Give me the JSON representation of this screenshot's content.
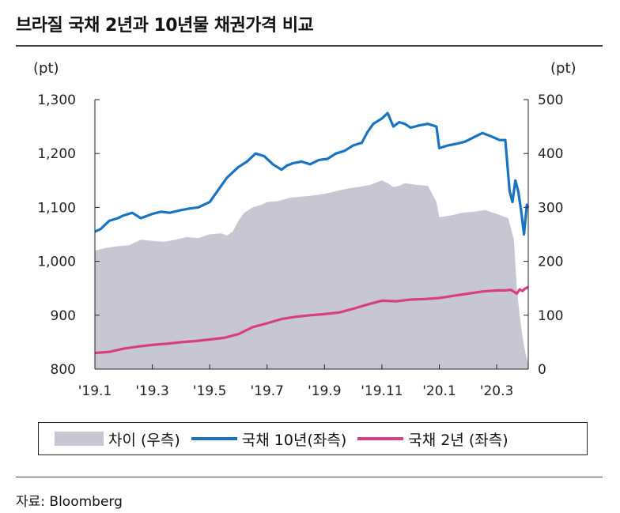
{
  "title": "브라질 국채 2년과 10년물 채권가격 비교",
  "source": "자료: Bloomberg",
  "chart_data": {
    "type": "line",
    "left_unit": "(pt)",
    "right_unit": "(pt)",
    "left_axis": {
      "min": 800,
      "max": 1300,
      "ticks": [
        "800",
        "900",
        "1,000",
        "1,100",
        "1,200",
        "1,300"
      ],
      "tick_values": [
        800,
        900,
        1000,
        1100,
        1200,
        1300
      ]
    },
    "right_axis": {
      "min": 0,
      "max": 500,
      "ticks": [
        "0",
        "100",
        "200",
        "300",
        "400",
        "500"
      ],
      "tick_values": [
        0,
        100,
        200,
        300,
        400,
        500
      ]
    },
    "x_labels": [
      "'19.1",
      "'19.3",
      "'19.5",
      "'19.7",
      "'19.9",
      "'19.11",
      "'20.1",
      "'20.3"
    ],
    "x_label_positions": [
      0,
      2,
      4,
      6,
      8,
      10,
      12,
      14
    ],
    "x_range": [
      0,
      15.1
    ],
    "colors": {
      "spread": "#c6c7d2",
      "bond10": "#1874c3",
      "bond2": "#d83d86"
    },
    "series": [
      {
        "name": "차이 (우측)",
        "axis": "right",
        "style": "area",
        "x": [
          0,
          0.4,
          0.8,
          1.2,
          1.6,
          2.0,
          2.4,
          2.8,
          3.2,
          3.6,
          4.0,
          4.4,
          4.6,
          4.8,
          5.0,
          5.2,
          5.5,
          5.8,
          6.0,
          6.4,
          6.8,
          7.2,
          7.6,
          8.0,
          8.4,
          8.8,
          9.2,
          9.6,
          10.0,
          10.2,
          10.4,
          10.6,
          10.8,
          11.2,
          11.6,
          11.9,
          12.0,
          12.4,
          12.8,
          13.2,
          13.6,
          14.0,
          14.4,
          14.6,
          14.7,
          14.8,
          14.9,
          15.0,
          15.1
        ],
        "values": [
          220,
          225,
          228,
          230,
          240,
          238,
          236,
          240,
          245,
          243,
          250,
          252,
          248,
          255,
          275,
          290,
          300,
          305,
          310,
          312,
          318,
          320,
          322,
          325,
          330,
          335,
          338,
          342,
          350,
          345,
          338,
          340,
          345,
          342,
          340,
          310,
          282,
          285,
          290,
          292,
          295,
          288,
          280,
          240,
          150,
          100,
          60,
          30,
          10
        ]
      },
      {
        "name": "국채 10년(좌측)",
        "axis": "left",
        "style": "line",
        "x": [
          0,
          0.2,
          0.5,
          0.8,
          1.0,
          1.3,
          1.6,
          2.0,
          2.3,
          2.6,
          3.0,
          3.3,
          3.6,
          4.0,
          4.4,
          4.6,
          4.8,
          5.0,
          5.3,
          5.6,
          5.9,
          6.2,
          6.5,
          6.7,
          6.9,
          7.2,
          7.5,
          7.8,
          8.1,
          8.4,
          8.7,
          9.0,
          9.3,
          9.5,
          9.7,
          10.0,
          10.2,
          10.4,
          10.6,
          10.8,
          11.0,
          11.3,
          11.6,
          11.9,
          12.0,
          12.3,
          12.6,
          12.9,
          13.2,
          13.5,
          13.8,
          14.1,
          14.3,
          14.45,
          14.55,
          14.65,
          14.75,
          14.85,
          14.95,
          15.05,
          15.1
        ],
        "values": [
          1055,
          1060,
          1075,
          1080,
          1085,
          1090,
          1080,
          1088,
          1092,
          1090,
          1095,
          1098,
          1100,
          1110,
          1140,
          1155,
          1165,
          1175,
          1185,
          1200,
          1195,
          1180,
          1170,
          1178,
          1182,
          1185,
          1180,
          1188,
          1190,
          1200,
          1205,
          1215,
          1220,
          1240,
          1255,
          1265,
          1275,
          1250,
          1258,
          1255,
          1248,
          1252,
          1255,
          1250,
          1210,
          1215,
          1218,
          1222,
          1230,
          1238,
          1232,
          1225,
          1225,
          1130,
          1110,
          1150,
          1130,
          1095,
          1050,
          1105,
          1100
        ]
      },
      {
        "name": "국채 2년 (좌측)",
        "axis": "left",
        "style": "line",
        "x": [
          0,
          0.5,
          1.0,
          1.5,
          2.0,
          2.5,
          3.0,
          3.5,
          4.0,
          4.5,
          5.0,
          5.5,
          6.0,
          6.5,
          7.0,
          7.5,
          8.0,
          8.5,
          9.0,
          9.5,
          10.0,
          10.5,
          11.0,
          11.5,
          12.0,
          12.5,
          13.0,
          13.5,
          14.0,
          14.3,
          14.5,
          14.7,
          14.8,
          14.9,
          15.0,
          15.1
        ],
        "values": [
          830,
          832,
          838,
          842,
          845,
          847,
          850,
          852,
          855,
          858,
          865,
          878,
          885,
          893,
          897,
          900,
          902,
          905,
          912,
          920,
          927,
          926,
          929,
          930,
          932,
          936,
          940,
          944,
          946,
          946,
          947,
          940,
          948,
          945,
          950,
          952
        ]
      }
    ]
  },
  "legend": {
    "spread_label": "차이 (우측)",
    "bond10_label": "국채 10년(좌측)",
    "bond2_label": "국채 2년 (좌측)"
  }
}
